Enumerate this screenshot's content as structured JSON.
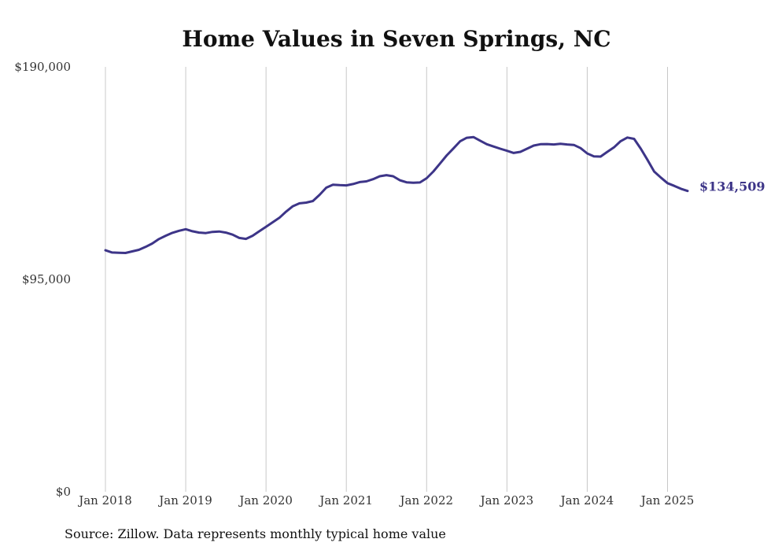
{
  "chart_data": {
    "type": "line",
    "title": "Home Values in Seven Springs, NC",
    "xlabel": "",
    "ylabel": "",
    "ylim": [
      0,
      190000
    ],
    "xlim": [
      "2018-01",
      "2025-04"
    ],
    "grid": {
      "vertical": true,
      "horizontal": false
    },
    "y_ticks": [
      {
        "value": 0,
        "label": "$0"
      },
      {
        "value": 95000,
        "label": "$95,000"
      },
      {
        "value": 190000,
        "label": "$190,000"
      }
    ],
    "x_ticks": [
      {
        "value": "2018-01",
        "label": "Jan 2018"
      },
      {
        "value": "2019-01",
        "label": "Jan 2019"
      },
      {
        "value": "2020-01",
        "label": "Jan 2020"
      },
      {
        "value": "2021-01",
        "label": "Jan 2021"
      },
      {
        "value": "2022-01",
        "label": "Jan 2022"
      },
      {
        "value": "2023-01",
        "label": "Jan 2023"
      },
      {
        "value": "2024-01",
        "label": "Jan 2024"
      },
      {
        "value": "2025-01",
        "label": "Jan 2025"
      }
    ],
    "series": [
      {
        "color": "#3d3588",
        "end_label": "$134,509",
        "points": [
          [
            "2018-01",
            108000
          ],
          [
            "2018-02",
            107000
          ],
          [
            "2018-03",
            106900
          ],
          [
            "2018-04",
            106800
          ],
          [
            "2018-05",
            107500
          ],
          [
            "2018-06",
            108200
          ],
          [
            "2018-07",
            109500
          ],
          [
            "2018-08",
            111000
          ],
          [
            "2018-09",
            113000
          ],
          [
            "2018-10",
            114500
          ],
          [
            "2018-11",
            115800
          ],
          [
            "2018-12",
            116700
          ],
          [
            "2019-01",
            117400
          ],
          [
            "2019-02",
            116500
          ],
          [
            "2019-03",
            115900
          ],
          [
            "2019-04",
            115700
          ],
          [
            "2019-05",
            116200
          ],
          [
            "2019-06",
            116400
          ],
          [
            "2019-07",
            115900
          ],
          [
            "2019-08",
            115000
          ],
          [
            "2019-09",
            113500
          ],
          [
            "2019-10",
            113100
          ],
          [
            "2019-11",
            114500
          ],
          [
            "2019-12",
            116500
          ],
          [
            "2020-01",
            118500
          ],
          [
            "2020-02",
            120500
          ],
          [
            "2020-03",
            122500
          ],
          [
            "2020-04",
            125300
          ],
          [
            "2020-05",
            127700
          ],
          [
            "2020-06",
            129000
          ],
          [
            "2020-07",
            129300
          ],
          [
            "2020-08",
            130000
          ],
          [
            "2020-09",
            132800
          ],
          [
            "2020-10",
            136000
          ],
          [
            "2020-11",
            137300
          ],
          [
            "2020-12",
            137100
          ],
          [
            "2021-01",
            137000
          ],
          [
            "2021-02",
            137600
          ],
          [
            "2021-03",
            138500
          ],
          [
            "2021-04",
            138800
          ],
          [
            "2021-05",
            139800
          ],
          [
            "2021-06",
            141100
          ],
          [
            "2021-07",
            141600
          ],
          [
            "2021-08",
            141100
          ],
          [
            "2021-09",
            139300
          ],
          [
            "2021-10",
            138400
          ],
          [
            "2021-11",
            138200
          ],
          [
            "2021-12",
            138300
          ],
          [
            "2022-01",
            140200
          ],
          [
            "2022-02",
            143200
          ],
          [
            "2022-03",
            146800
          ],
          [
            "2022-04",
            150400
          ],
          [
            "2022-05",
            153500
          ],
          [
            "2022-06",
            156700
          ],
          [
            "2022-07",
            158300
          ],
          [
            "2022-08",
            158600
          ],
          [
            "2022-09",
            157000
          ],
          [
            "2022-10",
            155400
          ],
          [
            "2022-11",
            154400
          ],
          [
            "2022-12",
            153400
          ],
          [
            "2023-01",
            152500
          ],
          [
            "2023-02",
            151500
          ],
          [
            "2023-03",
            152000
          ],
          [
            "2023-04",
            153400
          ],
          [
            "2023-05",
            154800
          ],
          [
            "2023-06",
            155400
          ],
          [
            "2023-07",
            155500
          ],
          [
            "2023-08",
            155300
          ],
          [
            "2023-09",
            155600
          ],
          [
            "2023-10",
            155300
          ],
          [
            "2023-11",
            155100
          ],
          [
            "2023-12",
            153700
          ],
          [
            "2024-01",
            151300
          ],
          [
            "2024-02",
            150000
          ],
          [
            "2024-03",
            149900
          ],
          [
            "2024-04",
            152000
          ],
          [
            "2024-05",
            154000
          ],
          [
            "2024-06",
            156800
          ],
          [
            "2024-07",
            158400
          ],
          [
            "2024-08",
            157800
          ],
          [
            "2024-09",
            153400
          ],
          [
            "2024-10",
            148400
          ],
          [
            "2024-11",
            143200
          ],
          [
            "2024-12",
            140500
          ],
          [
            "2025-01",
            138000
          ],
          [
            "2025-02",
            136800
          ],
          [
            "2025-03",
            135500
          ],
          [
            "2025-04",
            134509
          ]
        ]
      }
    ],
    "source_note": "Source: Zillow. Data represents monthly typical home value"
  }
}
